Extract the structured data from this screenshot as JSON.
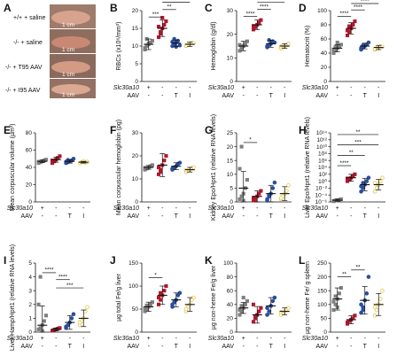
{
  "colors": {
    "wt": "#7f7f7f",
    "ko": "#b0172b",
    "t95": "#2b4f9e",
    "i95": "#e4c84a",
    "bar": "#111111"
  },
  "panel_a": {
    "letter": "A",
    "rows": [
      {
        "label": "+/+ + saline",
        "scale": "1 cm"
      },
      {
        "label": "-/- + saline",
        "scale": "1 cm"
      },
      {
        "label": "-/- + T95 AAV",
        "scale": "1 cm"
      },
      {
        "label": "-/- + I95 AAV",
        "scale": "1 cm"
      }
    ]
  },
  "condition_rows": {
    "gene_label": "Slc30a10",
    "aav_label": "AAV",
    "gene_values": [
      "+",
      "-",
      "-",
      "-"
    ],
    "aav_values": [
      "-",
      "-",
      "T",
      "I"
    ]
  },
  "chart_data": [
    {
      "id": "B",
      "type": "scatter",
      "ylabel": "RBCs (x10⁶/mm³)",
      "yscale": "linear",
      "ylim": [
        0,
        20
      ],
      "yticks": [
        "0",
        "5",
        "10",
        "15",
        "20"
      ],
      "groups": [
        {
          "mean": 10.5,
          "sd": 1.5,
          "values": [
            9.0,
            10.0,
            10.5,
            11.0,
            11.5,
            9.5,
            12.0,
            10.8
          ]
        },
        {
          "mean": 15.0,
          "sd": 2.3,
          "values": [
            12.5,
            14.0,
            15.0,
            16.0,
            17.0,
            15.5,
            13.5,
            18.0
          ]
        },
        {
          "mean": 10.8,
          "sd": 0.9,
          "values": [
            10.0,
            10.5,
            11.0,
            11.5,
            10.2,
            11.2,
            12.0,
            9.8
          ]
        },
        {
          "mean": 10.5,
          "sd": 0.6,
          "values": [
            10.0,
            10.3,
            10.6,
            11.0,
            10.8,
            10.1
          ]
        }
      ],
      "significance": [
        {
          "from": 0,
          "to": 1,
          "label": "***",
          "y": 18.2
        },
        {
          "from": 1,
          "to": 2,
          "label": "**",
          "y": 20.3
        },
        {
          "from": 1,
          "to": 3,
          "label": "*",
          "y": 22.4
        }
      ]
    },
    {
      "id": "C",
      "type": "scatter",
      "ylabel": "Hemoglobin (g/dl)",
      "yscale": "linear",
      "ylim": [
        0,
        30
      ],
      "yticks": [
        "0",
        "10",
        "20",
        "30"
      ],
      "groups": [
        {
          "mean": 15.0,
          "sd": 2.0,
          "values": [
            13.0,
            14.0,
            15.0,
            16.0,
            17.0,
            15.5,
            14.5
          ]
        },
        {
          "mean": 24.0,
          "sd": 2.0,
          "values": [
            22.0,
            23.0,
            24.0,
            25.0,
            26.0,
            23.5
          ]
        },
        {
          "mean": 16.0,
          "sd": 1.5,
          "values": [
            14.5,
            15.5,
            16.0,
            17.0,
            16.5,
            15.0,
            17.5
          ]
        },
        {
          "mean": 15.0,
          "sd": 1.0,
          "values": [
            14.0,
            14.5,
            15.0,
            15.5,
            16.0,
            14.8
          ]
        }
      ],
      "significance": [
        {
          "from": 0,
          "to": 1,
          "label": "****",
          "y": 27.5
        },
        {
          "from": 1,
          "to": 2,
          "label": "****",
          "y": 30.5
        },
        {
          "from": 1,
          "to": 3,
          "label": "***",
          "y": 33.5
        }
      ]
    },
    {
      "id": "D",
      "type": "scatter",
      "ylabel": "Hematocrit (%)",
      "yscale": "linear",
      "ylim": [
        0,
        100
      ],
      "yticks": [
        "0",
        "20",
        "40",
        "60",
        "80",
        "100"
      ],
      "groups": [
        {
          "mean": 47,
          "sd": 5,
          "values": [
            40,
            44,
            47,
            50,
            52,
            45,
            49,
            55
          ]
        },
        {
          "mean": 75,
          "sd": 8,
          "values": [
            65,
            70,
            75,
            80,
            85,
            72,
            78
          ]
        },
        {
          "mean": 50,
          "sd": 4,
          "values": [
            45,
            48,
            50,
            52,
            55,
            47,
            51
          ]
        },
        {
          "mean": 48,
          "sd": 3,
          "values": [
            45,
            47,
            48,
            50,
            49,
            46
          ]
        }
      ],
      "significance": [
        {
          "from": 0,
          "to": 1,
          "label": "****",
          "y": 92
        },
        {
          "from": 1,
          "to": 2,
          "label": "****",
          "y": 101
        },
        {
          "from": 1,
          "to": 3,
          "label": "****",
          "y": 110
        }
      ]
    },
    {
      "id": "E",
      "type": "scatter",
      "ylabel": "Mean corpuscular volume (µm³)",
      "yscale": "linear",
      "ylim": [
        0,
        80
      ],
      "yticks": [
        "0",
        "20",
        "40",
        "60",
        "80"
      ],
      "groups": [
        {
          "mean": 47,
          "sd": 1.5,
          "values": [
            45,
            46,
            47,
            48,
            49,
            46.5
          ]
        },
        {
          "mean": 49,
          "sd": 3.0,
          "values": [
            45,
            47,
            49,
            51,
            53,
            48
          ]
        },
        {
          "mean": 47,
          "sd": 2.0,
          "values": [
            45,
            46,
            47,
            48,
            50,
            46.5,
            48.5
          ]
        },
        {
          "mean": 46,
          "sd": 1.0,
          "values": [
            45,
            46,
            47,
            45.5,
            46.5
          ]
        }
      ],
      "significance": []
    },
    {
      "id": "F",
      "type": "scatter",
      "ylabel": "Mean corpuscular hemoglobin (pg)",
      "yscale": "linear",
      "ylim": [
        0,
        30
      ],
      "yticks": [
        "0",
        "10",
        "20",
        "30"
      ],
      "groups": [
        {
          "mean": 15,
          "sd": 0.8,
          "values": [
            14,
            14.5,
            15,
            15.5,
            16,
            14.8
          ]
        },
        {
          "mean": 16,
          "sd": 5.0,
          "values": [
            12,
            14,
            16,
            18,
            20,
            15,
            13
          ]
        },
        {
          "mean": 15.5,
          "sd": 1.5,
          "values": [
            14,
            15,
            15.5,
            16.5,
            17,
            14.5
          ]
        },
        {
          "mean": 14,
          "sd": 1.0,
          "values": [
            13,
            13.5,
            14,
            14.5,
            15,
            13.8
          ]
        }
      ],
      "significance": []
    },
    {
      "id": "G",
      "type": "scatter",
      "ylabel": "Kidney Epo/Hprt1 (relative RNA levels)",
      "yscale": "linear",
      "ylim": [
        0,
        25
      ],
      "yticks": [
        "0",
        "5",
        "10",
        "15",
        "20",
        "25"
      ],
      "groups": [
        {
          "mean": 5,
          "sd": 6.0,
          "values": [
            1,
            2,
            3,
            5,
            8,
            12,
            20,
            0.5
          ]
        },
        {
          "mean": 2,
          "sd": 2.0,
          "values": [
            0.5,
            1,
            2,
            3,
            4,
            1.5,
            0.8
          ]
        },
        {
          "mean": 3,
          "sd": 3.0,
          "values": [
            1,
            2,
            3,
            5,
            7,
            0.5,
            2.5
          ]
        },
        {
          "mean": 3,
          "sd": 2.5,
          "values": [
            1,
            2,
            3,
            4,
            6,
            1.5
          ]
        }
      ],
      "significance": [
        {
          "from": 0,
          "to": 1,
          "label": "*",
          "y": 21.5
        }
      ]
    },
    {
      "id": "H",
      "type": "scatter",
      "ylabel": "Liver Epo/Hprt1 (relative RNA levels)",
      "yscale": "log",
      "ylim": [
        -6,
        14
      ],
      "yticks": [
        "10⁻⁶",
        "10⁻⁴",
        "10⁻²",
        "10⁰",
        "10²",
        "10⁴",
        "10⁶",
        "10⁸",
        "10¹⁰",
        "10¹²",
        "10¹⁴"
      ],
      "groups": [
        {
          "mean": -5.5,
          "sd": 0.3,
          "values": [
            -5.8,
            -5.6,
            -5.5,
            -5.4,
            -5.2,
            -5.7
          ]
        },
        {
          "mean": 1,
          "sd": 1.0,
          "values": [
            0,
            0.5,
            1,
            1.5,
            2,
            0.8
          ]
        },
        {
          "mean": -1,
          "sd": 1.8,
          "values": [
            -3,
            -2,
            -1,
            0,
            1,
            -1.5,
            -0.5
          ]
        },
        {
          "mean": -1,
          "sd": 1.5,
          "values": [
            -3,
            -2,
            -1,
            0,
            1,
            -0.5
          ]
        }
      ],
      "significance": [
        {
          "from": 0,
          "to": 1,
          "label": "****",
          "y": 4.5
        },
        {
          "from": 0,
          "to": 2,
          "label": "**",
          "y": 7.5
        },
        {
          "from": 0,
          "to": 3,
          "label": "***",
          "y": 10.5
        },
        {
          "from": 0,
          "to": 3,
          "label": "**",
          "y": 13.5
        }
      ]
    },
    {
      "id": "I",
      "type": "scatter",
      "ylabel": "Liver Hamp/Hprt1 (relative RNA levels)",
      "yscale": "linear",
      "ylim": [
        0,
        5
      ],
      "yticks": [
        "0",
        "1",
        "2",
        "3",
        "4",
        "5"
      ],
      "groups": [
        {
          "mean": 0.5,
          "sd": 1.4,
          "values": [
            0.2,
            0.3,
            0.5,
            0.8,
            1.2,
            2.0,
            4.0,
            0.1
          ]
        },
        {
          "mean": 0.2,
          "sd": 0.1,
          "values": [
            0.1,
            0.15,
            0.2,
            0.25,
            0.3
          ]
        },
        {
          "mean": 0.7,
          "sd": 0.5,
          "values": [
            0.3,
            0.5,
            0.7,
            1.0,
            1.3,
            0.4
          ]
        },
        {
          "mean": 1.0,
          "sd": 0.6,
          "values": [
            0.5,
            0.8,
            1.0,
            1.5,
            1.8,
            0.7
          ]
        }
      ],
      "significance": [
        {
          "from": 0,
          "to": 1,
          "label": "****",
          "y": 4.3
        },
        {
          "from": 1,
          "to": 2,
          "label": "****",
          "y": 3.8
        },
        {
          "from": 1,
          "to": 3,
          "label": "***",
          "y": 3.2
        }
      ]
    },
    {
      "id": "J",
      "type": "scatter",
      "ylabel": "µg total Fe/g liver",
      "yscale": "linear",
      "ylim": [
        0,
        150
      ],
      "yticks": [
        "0",
        "50",
        "100",
        "150"
      ],
      "groups": [
        {
          "mean": 55,
          "sd": 10,
          "values": [
            45,
            50,
            55,
            60,
            65,
            52,
            58
          ]
        },
        {
          "mean": 80,
          "sd": 20,
          "values": [
            60,
            70,
            80,
            90,
            100,
            75,
            85
          ]
        },
        {
          "mean": 70,
          "sd": 15,
          "values": [
            55,
            65,
            70,
            80,
            85,
            60
          ]
        },
        {
          "mean": 60,
          "sd": 15,
          "values": [
            45,
            55,
            60,
            70,
            75,
            50
          ]
        }
      ],
      "significance": [
        {
          "from": 0,
          "to": 1,
          "label": "*",
          "y": 118
        }
      ]
    },
    {
      "id": "K",
      "type": "scatter",
      "ylabel": "µg non-heme Fe/g liver",
      "yscale": "linear",
      "ylim": [
        0,
        100
      ],
      "yticks": [
        "0",
        "20",
        "40",
        "60",
        "80",
        "100"
      ],
      "groups": [
        {
          "mean": 35,
          "sd": 8,
          "values": [
            25,
            30,
            35,
            40,
            45,
            32,
            38,
            50
          ]
        },
        {
          "mean": 25,
          "sd": 12,
          "values": [
            15,
            20,
            25,
            30,
            35,
            40,
            22
          ]
        },
        {
          "mean": 38,
          "sd": 12,
          "values": [
            25,
            30,
            38,
            45,
            50,
            35
          ]
        },
        {
          "mean": 30,
          "sd": 5,
          "values": [
            25,
            28,
            30,
            33,
            35,
            29
          ]
        }
      ],
      "significance": []
    },
    {
      "id": "L",
      "type": "scatter",
      "ylabel": "µg non-heme Fe/ g spleen",
      "yscale": "linear",
      "ylim": [
        0,
        250
      ],
      "yticks": [
        "0",
        "50",
        "100",
        "150",
        "200",
        "250"
      ],
      "groups": [
        {
          "mean": 120,
          "sd": 40,
          "values": [
            80,
            100,
            120,
            140,
            160,
            110,
            130,
            90
          ]
        },
        {
          "mean": 45,
          "sd": 15,
          "values": [
            30,
            40,
            45,
            50,
            60,
            35
          ]
        },
        {
          "mean": 115,
          "sd": 50,
          "values": [
            70,
            90,
            115,
            140,
            200,
            100,
            80
          ]
        },
        {
          "mean": 100,
          "sd": 40,
          "values": [
            60,
            80,
            100,
            120,
            150,
            90
          ]
        }
      ],
      "significance": [
        {
          "from": 0,
          "to": 1,
          "label": "**",
          "y": 200
        },
        {
          "from": 1,
          "to": 2,
          "label": "**",
          "y": 225
        }
      ]
    }
  ]
}
